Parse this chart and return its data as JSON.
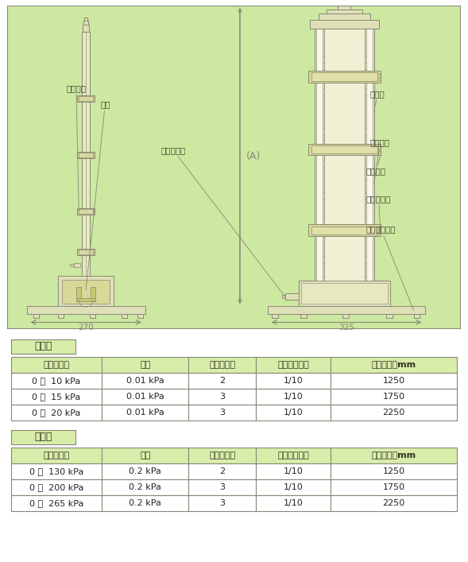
{
  "bg_color": "#cde8a0",
  "diagram_bg": "#cde8a0",
  "white_bg": "#ffffff",
  "border_color": "#666655",
  "line_color": "#555544",
  "draw_color": "#888877",
  "table_header_bg": "#d8edaa",
  "table_border": "#888877",
  "section1_label": "水　柱",
  "section2_label": "水銀柱",
  "col_headers": [
    "圧力の範囲",
    "目量",
    "カーソル数",
    "バーニア表示",
    "高さ（Ａ）mm"
  ],
  "water_rows": [
    [
      "0 ～  10 kPa",
      "0.01 kPa",
      "2",
      "1/10",
      "1250"
    ],
    [
      "0 ～  15 kPa",
      "0.01 kPa",
      "3",
      "1/10",
      "1750"
    ],
    [
      "0 ～  20 kPa",
      "0.01 kPa",
      "3",
      "1/10",
      "2250"
    ]
  ],
  "mercury_rows": [
    [
      "0 ～  130 kPa",
      "0.2 kPa",
      "2",
      "1/10",
      "1250"
    ],
    [
      "0 ～  200 kPa",
      "0.2 kPa",
      "3",
      "1/10",
      "1750"
    ],
    [
      "0 ～  265 kPa",
      "0.2 kPa",
      "3",
      "1/10",
      "2250"
    ]
  ],
  "label_cursor": "カーソル",
  "label_tank": "液槽",
  "label_pos_port": "正圧接続口",
  "label_A": "(A)",
  "label_scale": "目盛板",
  "label_glass": "ガラス管",
  "label_vernier": "バーニヤ",
  "label_neg_port": "負圧接続口",
  "label_level": "水平調整ねじ",
  "dim_left": "270",
  "dim_right": "325"
}
